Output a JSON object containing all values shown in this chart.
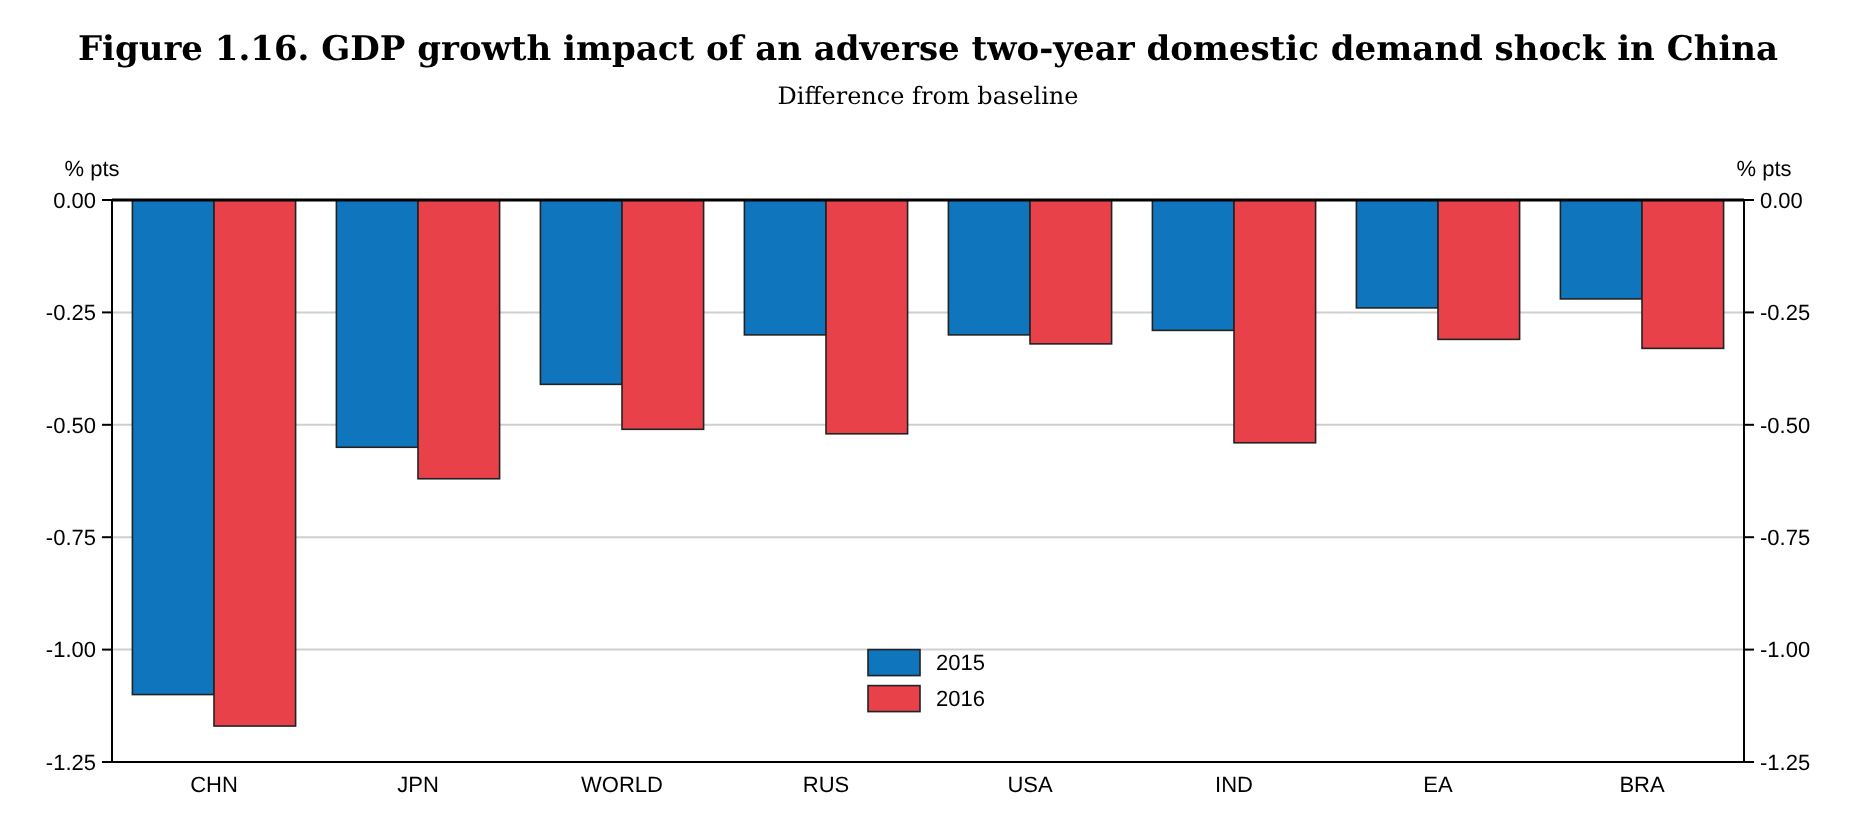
{
  "chart_data": {
    "type": "bar",
    "title": "Figure 1.16.   GDP growth impact of an adverse two-year domestic demand shock in China",
    "subtitle": "Difference from baseline",
    "ylabel": "% pts",
    "y2label": "% pts",
    "categories": [
      "CHN",
      "JPN",
      "WORLD",
      "RUS",
      "USA",
      "IND",
      "EA",
      "BRA"
    ],
    "series": [
      {
        "name": "2015",
        "color": "#0f75bd",
        "values": [
          -1.1,
          -0.55,
          -0.41,
          -0.3,
          -0.3,
          -0.29,
          -0.24,
          -0.22
        ]
      },
      {
        "name": "2016",
        "color": "#e8414a",
        "values": [
          -1.17,
          -0.62,
          -0.51,
          -0.52,
          -0.32,
          -0.54,
          -0.31,
          -0.33
        ]
      }
    ],
    "ylim": [
      -1.25,
      0
    ],
    "yticks": [
      {
        "value": 0,
        "label": "0.00"
      },
      {
        "value": -0.25,
        "label": "-0.25"
      },
      {
        "value": -0.5,
        "label": "-0.50"
      },
      {
        "value": -0.75,
        "label": "-0.75"
      },
      {
        "value": -1,
        "label": "-1.00"
      },
      {
        "value": -1.25,
        "label": "-1.25"
      }
    ],
    "y2lim": [
      -1.25,
      0
    ],
    "y2ticks": [
      {
        "value": 0,
        "label": "0.00"
      },
      {
        "value": -0.25,
        "label": "-0.25"
      },
      {
        "value": -0.5,
        "label": "-0.50"
      },
      {
        "value": -0.75,
        "label": "-0.75"
      },
      {
        "value": -1,
        "label": "-1.00"
      },
      {
        "value": -1.25,
        "label": "-1.25"
      }
    ],
    "grid": "y",
    "legend": "bottom"
  }
}
